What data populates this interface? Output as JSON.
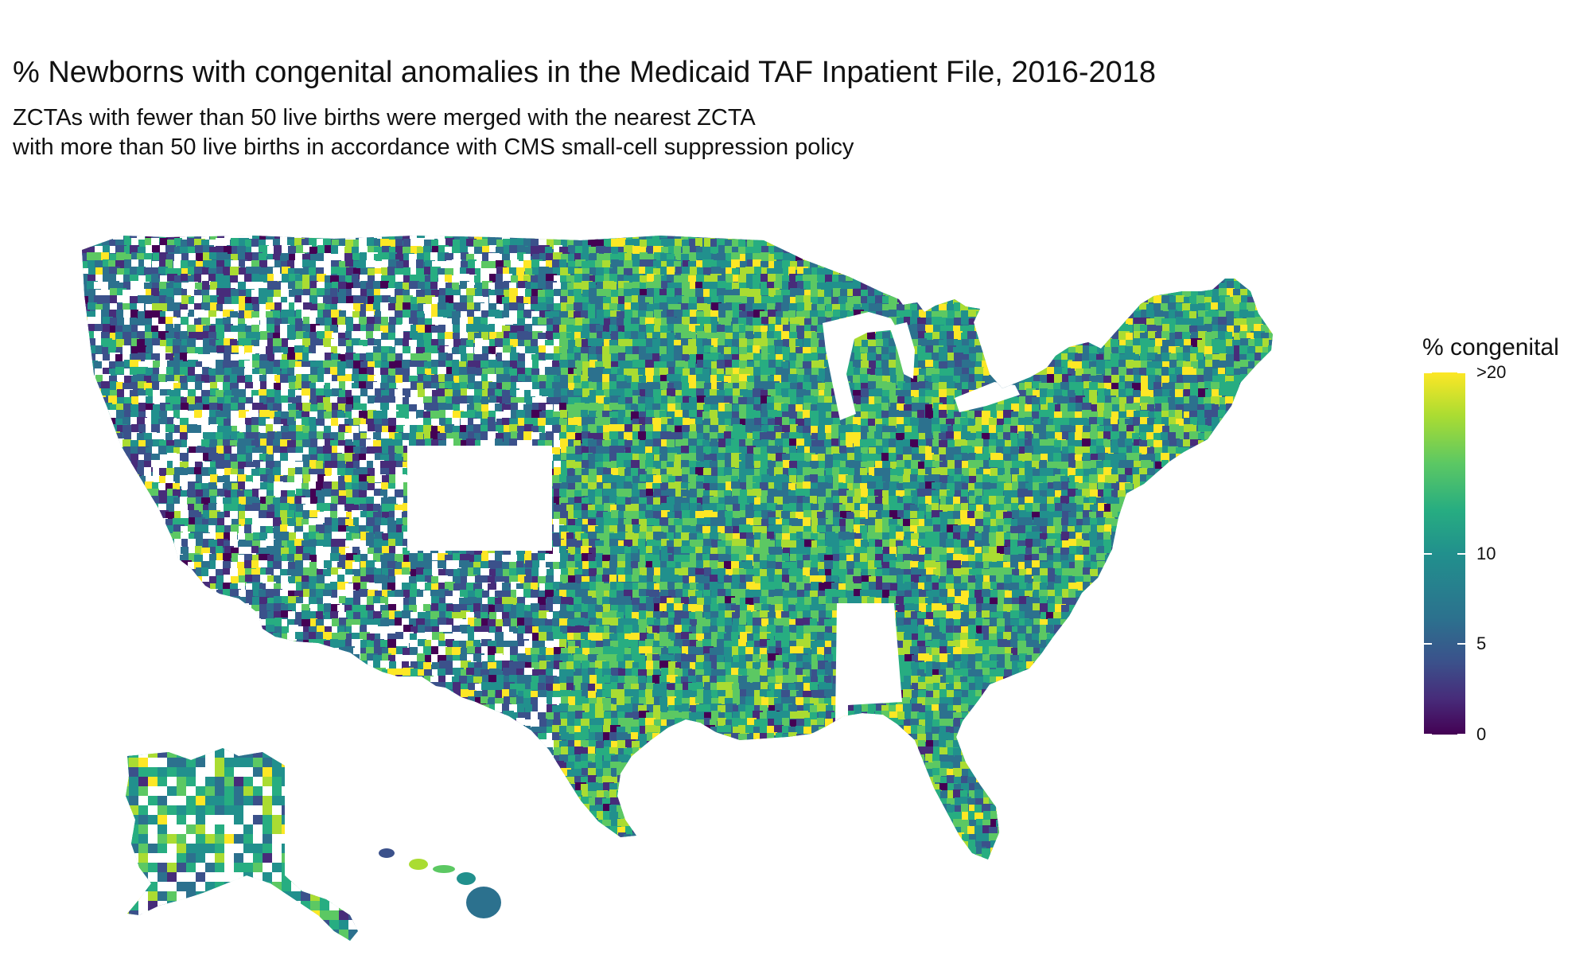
{
  "title": "% Newborns with congenital anomalies in the Medicaid TAF Inpatient File, 2016-2018",
  "subtitle": {
    "line1": "ZCTAs with fewer than 50 live births were merged with the nearest ZCTA",
    "line2": "with more than 50 live births in accordance with CMS small-cell suppression policy"
  },
  "legend": {
    "title": "% congenital",
    "min": 0,
    "max": 20,
    "ticks": [
      {
        "label": ">20",
        "value": 20
      },
      {
        "label": "10",
        "value": 10
      },
      {
        "label": "5",
        "value": 5
      },
      {
        "label": "0",
        "value": 0
      }
    ],
    "colors": [
      "#440154",
      "#472c7a",
      "#3b518b",
      "#2c718e",
      "#21908d",
      "#27ad81",
      "#5cc863",
      "#aadc32",
      "#fde725"
    ]
  },
  "map": {
    "regions": [
      "contiguous-us",
      "alaska",
      "hawaii"
    ],
    "missing_areas": [
      "colorado",
      "alabama"
    ]
  }
}
